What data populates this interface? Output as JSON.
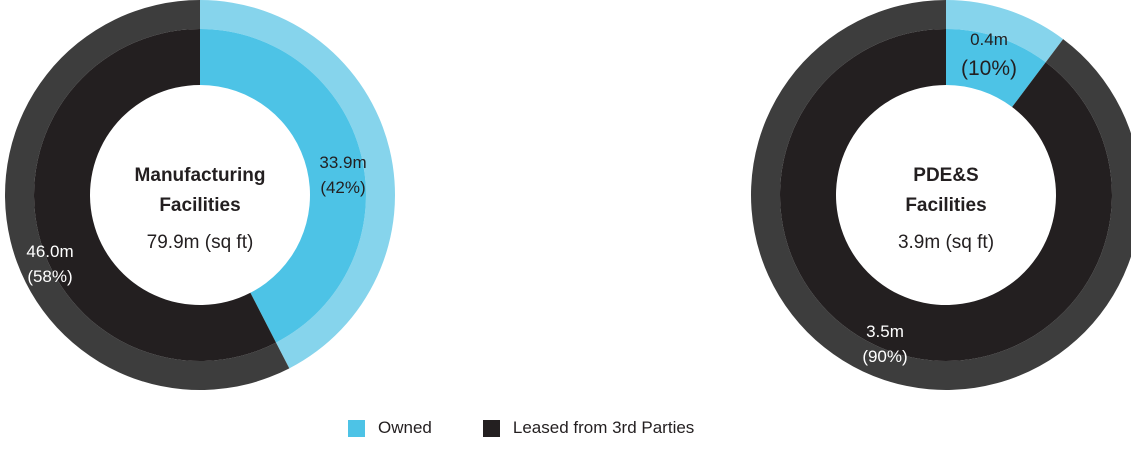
{
  "colors": {
    "owned_inner": "#4dc3e6",
    "owned_outer": "#86d4ec",
    "leased_inner": "#231f20",
    "leased_outer": "#3d3d3d",
    "hole": "#ffffff",
    "text_dark": "#231f20",
    "text_light": "#ffffff"
  },
  "chart_data": [
    {
      "type": "pie",
      "title": "Manufacturing Facilities",
      "total_label": "79.9m (sq ft)",
      "slices": [
        {
          "name": "Owned",
          "value": 33.9,
          "value_label": "33.9m",
          "pct_label": "(42%)"
        },
        {
          "name": "Leased from 3rd Parties",
          "value": 46.0,
          "value_label": "46.0m",
          "pct_label": "(58%)"
        }
      ]
    },
    {
      "type": "pie",
      "title": "PDE&S Facilities",
      "total_label": "3.9m (sq ft)",
      "slices": [
        {
          "name": "Owned",
          "value": 0.4,
          "value_label": "0.4m",
          "pct_label": "(10%)"
        },
        {
          "name": "Leased from 3rd Parties",
          "value": 3.5,
          "value_label": "3.5m",
          "pct_label": "(90%)"
        }
      ]
    }
  ],
  "legend": [
    {
      "label": "Owned",
      "color": "#4dc3e6"
    },
    {
      "label": "Leased from 3rd Parties",
      "color": "#231f20"
    }
  ]
}
